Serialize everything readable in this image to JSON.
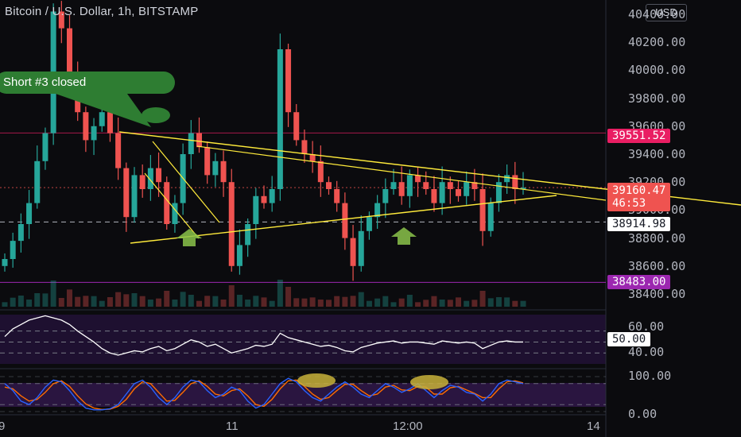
{
  "header": {
    "title": "Bitcoin / U.S. Dollar, 1h, BITSTAMP",
    "currency": "USD"
  },
  "annotation": {
    "text": "Short #3 closed"
  },
  "colors": {
    "up": "#26a69a",
    "down": "#ef5350",
    "trend": "#ffeb3b",
    "rsi": "#ffffff",
    "stoch_k": "#2962ff",
    "stoch_d": "#ff6d00",
    "panel": "#2a1540",
    "arrow": "#8bc34a"
  },
  "chart_data": {
    "type": "candlestick",
    "symbol": "Bitcoin / U.S. Dollar",
    "interval": "1h",
    "exchange": "BITSTAMP",
    "price_axis": {
      "ticks": [
        "40400.00",
        "40200.00",
        "40000.00",
        "39800.00",
        "39600.00",
        "39400.00",
        "39200.00",
        "39000.00",
        "38800.00",
        "38600.00",
        "38400.00"
      ],
      "ylim": [
        38320,
        40460
      ]
    },
    "x_axis": {
      "ticks": [
        "9",
        "11",
        "12:00",
        "14"
      ]
    },
    "price_tags": {
      "resistance": "39551.52",
      "last": "39160.47",
      "countdown": "46:53",
      "support": "38914.98",
      "low": "38483.00"
    },
    "closes": [
      38650,
      38780,
      38900,
      39050,
      39350,
      39550,
      40420,
      40300,
      39950,
      39700,
      39500,
      39600,
      39700,
      39550,
      39300,
      38950,
      39250,
      39150,
      39300,
      39200,
      38900,
      39050,
      39400,
      39550,
      39450,
      39250,
      39350,
      39200,
      38600,
      38750,
      38900,
      39100,
      39050,
      39150,
      40150,
      39700,
      39500,
      39400,
      39350,
      39200,
      39150,
      39050,
      38800,
      38600,
      38850,
      38950,
      39050,
      39150,
      39200,
      39100,
      39250,
      39200,
      39150,
      39050,
      39200,
      39150,
      39100,
      39200,
      39150,
      38850,
      39050,
      39200,
      39250,
      39150,
      39160
    ],
    "rsi": {
      "levels": [
        "60.00",
        "50.00",
        "40.00"
      ],
      "current": "50.00",
      "values": [
        55,
        62,
        66,
        70,
        72,
        74,
        72,
        70,
        66,
        60,
        55,
        50,
        44,
        40,
        38,
        40,
        42,
        41,
        44,
        46,
        42,
        44,
        48,
        52,
        50,
        46,
        48,
        44,
        40,
        42,
        44,
        47,
        46,
        48,
        58,
        54,
        52,
        50,
        48,
        46,
        47,
        45,
        42,
        41,
        45,
        47,
        49,
        50,
        51,
        49,
        50,
        50,
        49,
        48,
        51,
        50,
        49,
        50,
        49,
        44,
        47,
        50,
        51,
        50,
        50
      ]
    },
    "stoch": {
      "levels": [
        "100.00",
        "0.00"
      ],
      "k": [
        80,
        60,
        30,
        20,
        40,
        70,
        90,
        85,
        60,
        30,
        10,
        5,
        5,
        8,
        20,
        50,
        80,
        90,
        70,
        40,
        20,
        40,
        70,
        90,
        85,
        60,
        40,
        50,
        70,
        60,
        30,
        10,
        20,
        50,
        80,
        95,
        85,
        60,
        40,
        30,
        50,
        70,
        85,
        70,
        50,
        40,
        60,
        80,
        70,
        55,
        65,
        80,
        60,
        40,
        60,
        75,
        70,
        55,
        50,
        30,
        50,
        80,
        90,
        85,
        80
      ],
      "d": [
        70,
        65,
        45,
        30,
        35,
        55,
        80,
        88,
        72,
        45,
        22,
        10,
        6,
        7,
        15,
        35,
        65,
        85,
        80,
        55,
        30,
        32,
        55,
        80,
        88,
        72,
        50,
        45,
        60,
        65,
        45,
        20,
        15,
        35,
        65,
        88,
        90,
        72,
        50,
        35,
        40,
        60,
        78,
        78,
        60,
        45,
        50,
        70,
        75,
        62,
        60,
        72,
        70,
        50,
        50,
        68,
        72,
        62,
        52,
        40,
        40,
        65,
        85,
        88,
        82
      ]
    }
  }
}
